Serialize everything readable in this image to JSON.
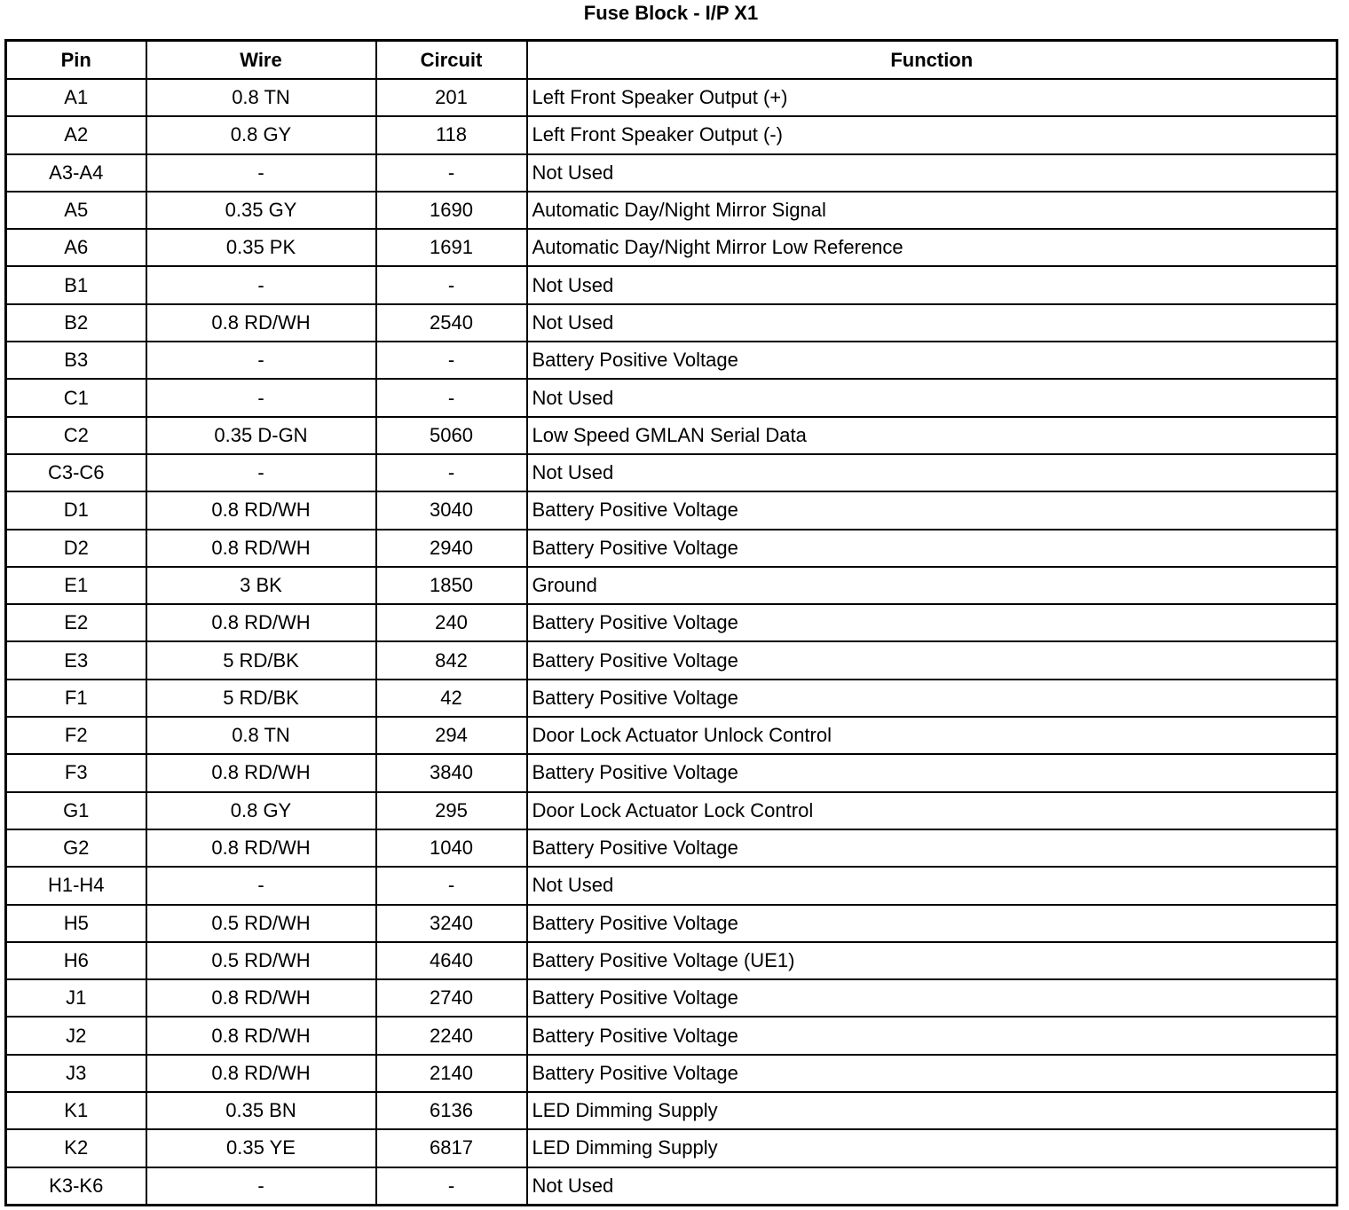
{
  "title": "Fuse Block - I/P X1",
  "headers": [
    "Pin",
    "Wire",
    "Circuit",
    "Function"
  ],
  "rows": [
    [
      "A1",
      "0.8 TN",
      "201",
      "Left Front Speaker Output (+)"
    ],
    [
      "A2",
      "0.8 GY",
      "118",
      "Left Front Speaker Output (-)"
    ],
    [
      "A3-A4",
      "-",
      "-",
      "Not Used"
    ],
    [
      "A5",
      "0.35 GY",
      "1690",
      "Automatic Day/Night Mirror Signal"
    ],
    [
      "A6",
      "0.35 PK",
      "1691",
      "Automatic Day/Night Mirror Low Reference"
    ],
    [
      "B1",
      "-",
      "-",
      "Not Used"
    ],
    [
      "B2",
      "0.8 RD/WH",
      "2540",
      "Not Used"
    ],
    [
      "B3",
      "-",
      "-",
      "Battery Positive Voltage"
    ],
    [
      "C1",
      "-",
      "-",
      "Not Used"
    ],
    [
      "C2",
      "0.35 D-GN",
      "5060",
      "Low Speed GMLAN Serial Data"
    ],
    [
      "C3-C6",
      "-",
      "-",
      "Not Used"
    ],
    [
      "D1",
      "0.8 RD/WH",
      "3040",
      "Battery Positive Voltage"
    ],
    [
      "D2",
      "0.8 RD/WH",
      "2940",
      "Battery Positive Voltage"
    ],
    [
      "E1",
      "3 BK",
      "1850",
      "Ground"
    ],
    [
      "E2",
      "0.8 RD/WH",
      "240",
      "Battery Positive Voltage"
    ],
    [
      "E3",
      "5 RD/BK",
      "842",
      "Battery Positive Voltage"
    ],
    [
      "F1",
      "5 RD/BK",
      "42",
      "Battery Positive Voltage"
    ],
    [
      "F2",
      "0.8 TN",
      "294",
      "Door Lock Actuator Unlock Control"
    ],
    [
      "F3",
      "0.8 RD/WH",
      "3840",
      "Battery Positive Voltage"
    ],
    [
      "G1",
      "0.8 GY",
      "295",
      "Door Lock Actuator Lock Control"
    ],
    [
      "G2",
      "0.8 RD/WH",
      "1040",
      "Battery Positive Voltage"
    ],
    [
      "H1-H4",
      "-",
      "-",
      "Not Used"
    ],
    [
      "H5",
      "0.5 RD/WH",
      "3240",
      "Battery Positive Voltage"
    ],
    [
      "H6",
      "0.5 RD/WH",
      "4640",
      "Battery Positive Voltage (UE1)"
    ],
    [
      "J1",
      "0.8 RD/WH",
      "2740",
      "Battery Positive Voltage"
    ],
    [
      "J2",
      "0.8 RD/WH",
      "2240",
      "Battery Positive Voltage"
    ],
    [
      "J3",
      "0.8 RD/WH",
      "2140",
      "Battery Positive Voltage"
    ],
    [
      "K1",
      "0.35 BN",
      "6136",
      "LED Dimming Supply"
    ],
    [
      "K2",
      "0.35 YE",
      "6817",
      "LED Dimming Supply"
    ],
    [
      "K3-K6",
      "-",
      "-",
      "Not Used"
    ]
  ]
}
